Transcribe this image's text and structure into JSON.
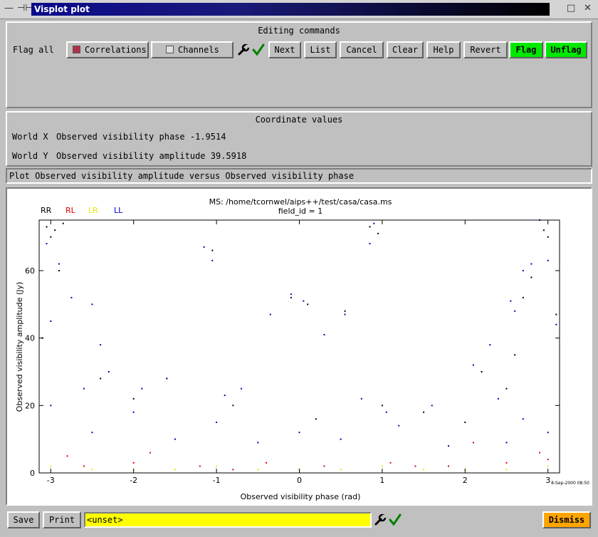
{
  "window": {
    "title": "Visplot plot",
    "left_controls": [
      "—",
      "⊣⊢"
    ],
    "right_controls": [
      "□",
      "✕"
    ]
  },
  "editing": {
    "heading": "Editing commands",
    "flag_all_label": "Flag all",
    "correlations_label": "Correlations",
    "channels_label": "Channels",
    "buttons": {
      "next": "Next",
      "list": "List",
      "cancel": "Cancel",
      "clear": "Clear",
      "help": "Help",
      "revert": "Revert",
      "flag": "Flag",
      "unflag": "Unflag"
    },
    "colors": {
      "flag_bg": "#00e800",
      "correlations_square": "#b0304a",
      "check": "#008000"
    }
  },
  "coords": {
    "heading": "Coordinate values",
    "world_x_label": "World X",
    "world_x_value": "Observed visibility phase -1.9514",
    "world_y_label": "World Y",
    "world_y_value": "Observed visibility amplitude 39.5918"
  },
  "plot_status": "Plot Observed visibility amplitude versus Observed visibility phase",
  "chart_data": {
    "type": "scatter",
    "title": "MS: /home/tcornwel/aips++/test/casa/casa.ms",
    "subtitle": "field_id = 1",
    "xlabel": "Observed visibility phase (rad)",
    "ylabel": "Observed visibility amplitude (Jy)",
    "xlim": [
      -3.14,
      3.14
    ],
    "ylim": [
      0,
      75
    ],
    "xticks": [
      "-3",
      "-2",
      "-1",
      "0",
      "1",
      "2",
      "3"
    ],
    "yticks": [
      "0",
      "20",
      "40",
      "60"
    ],
    "legend": [
      {
        "name": "RR",
        "color": "#000000"
      },
      {
        "name": "RL",
        "color": "#e00000"
      },
      {
        "name": "LR",
        "color": "#e8e800"
      },
      {
        "name": "LL",
        "color": "#0000c0"
      }
    ],
    "timestamp": "8-Sep-2000 08:50",
    "series": [
      {
        "name": "RR",
        "color": "#000000",
        "points": [
          [
            -3.05,
            73
          ],
          [
            -2.95,
            72
          ],
          [
            -2.85,
            74
          ],
          [
            -3.0,
            70
          ],
          [
            -2.9,
            60
          ],
          [
            -1.05,
            66
          ],
          [
            -0.1,
            52
          ],
          [
            0.1,
            50
          ],
          [
            0.55,
            48
          ],
          [
            0.85,
            73
          ],
          [
            0.95,
            71
          ],
          [
            2.8,
            58
          ],
          [
            2.95,
            72
          ],
          [
            3.0,
            70
          ],
          [
            2.7,
            52
          ],
          [
            3.1,
            47
          ],
          [
            -2.4,
            28
          ],
          [
            2.2,
            30
          ],
          [
            2.5,
            25
          ],
          [
            -1.6,
            28
          ],
          [
            -0.8,
            20
          ],
          [
            1.5,
            18
          ],
          [
            2.0,
            15
          ],
          [
            -2.0,
            22
          ],
          [
            0.2,
            16
          ],
          [
            1.0,
            20
          ],
          [
            2.6,
            35
          ],
          [
            -3.1,
            40
          ]
        ]
      },
      {
        "name": "RL",
        "color": "#e00000",
        "points": [
          [
            -2.0,
            3
          ],
          [
            -1.2,
            2
          ],
          [
            -0.4,
            3
          ],
          [
            0.3,
            2
          ],
          [
            1.1,
            3
          ],
          [
            1.8,
            2
          ],
          [
            2.5,
            3
          ],
          [
            3.0,
            4
          ],
          [
            -2.6,
            2
          ],
          [
            -2.8,
            5
          ],
          [
            2.9,
            6
          ],
          [
            -0.8,
            1
          ],
          [
            1.4,
            2
          ],
          [
            2.1,
            9
          ],
          [
            -1.8,
            6
          ]
        ]
      },
      {
        "name": "LR",
        "color": "#e8e800",
        "points": [
          [
            -2.5,
            1
          ],
          [
            -1.5,
            1
          ],
          [
            -0.5,
            1
          ],
          [
            0.5,
            1
          ],
          [
            1.5,
            1
          ],
          [
            2.5,
            1
          ],
          [
            -3.0,
            2
          ],
          [
            3.0,
            2
          ],
          [
            -1.0,
            2
          ],
          [
            1.0,
            2
          ],
          [
            2.0,
            1
          ],
          [
            -2.0,
            1
          ],
          [
            0.0,
            1
          ]
        ]
      },
      {
        "name": "LL",
        "color": "#0000c0",
        "points": [
          [
            -3.05,
            68
          ],
          [
            -2.9,
            62
          ],
          [
            -2.75,
            52
          ],
          [
            -2.5,
            50
          ],
          [
            -2.4,
            38
          ],
          [
            -3.0,
            45
          ],
          [
            -2.6,
            25
          ],
          [
            -2.3,
            30
          ],
          [
            -1.9,
            25
          ],
          [
            -1.6,
            28
          ],
          [
            -1.15,
            67
          ],
          [
            -1.05,
            63
          ],
          [
            -0.35,
            47
          ],
          [
            -0.1,
            53
          ],
          [
            0.05,
            51
          ],
          [
            0.3,
            41
          ],
          [
            0.55,
            47
          ],
          [
            0.85,
            68
          ],
          [
            0.9,
            74
          ],
          [
            2.7,
            60
          ],
          [
            2.8,
            62
          ],
          [
            2.9,
            75
          ],
          [
            3.0,
            63
          ],
          [
            2.55,
            51
          ],
          [
            2.6,
            48
          ],
          [
            3.1,
            44
          ],
          [
            2.3,
            38
          ],
          [
            2.1,
            32
          ],
          [
            -0.7,
            25
          ],
          [
            -0.9,
            23
          ],
          [
            0.75,
            22
          ],
          [
            1.05,
            18
          ],
          [
            1.6,
            20
          ],
          [
            2.4,
            22
          ],
          [
            -3.0,
            20
          ],
          [
            -2.0,
            18
          ],
          [
            -1.0,
            15
          ],
          [
            0.0,
            12
          ],
          [
            1.2,
            14
          ],
          [
            2.7,
            16
          ],
          [
            -2.5,
            12
          ],
          [
            -1.5,
            10
          ],
          [
            -0.5,
            9
          ],
          [
            0.5,
            10
          ],
          [
            1.8,
            8
          ],
          [
            2.5,
            9
          ],
          [
            3.0,
            12
          ]
        ]
      }
    ]
  },
  "footer": {
    "save": "Save",
    "print": "Print",
    "input_value": "<unset>",
    "dismiss": "Dismiss"
  }
}
